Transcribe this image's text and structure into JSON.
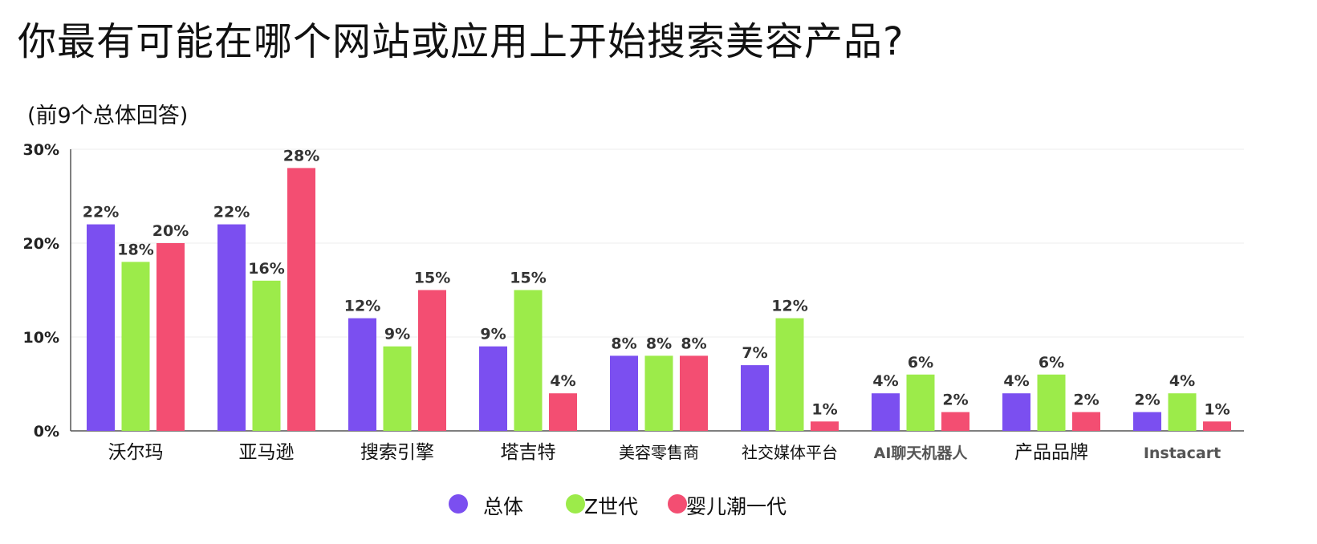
{
  "title": "你最有可能在哪个网站或应用上开始搜索美容产品?",
  "subtitle": "(前9个总体回答)",
  "chart_data": {
    "type": "bar",
    "categories": [
      "沃尔玛",
      "亚马逊",
      "搜索引擎",
      "塔吉特",
      "美容零售商",
      "社交媒体平台",
      "AI聊天机器人",
      "产品品牌",
      "Instacart"
    ],
    "series": [
      {
        "name": "总体",
        "color": "#7b4ff0",
        "values": [
          22,
          22,
          12,
          9,
          8,
          7,
          4,
          4,
          2
        ]
      },
      {
        "name": "Z世代",
        "color": "#9ceb4a",
        "values": [
          18,
          16,
          9,
          15,
          8,
          12,
          6,
          6,
          4
        ]
      },
      {
        "name": "婴儿潮一代",
        "color": "#f34e72",
        "values": [
          20,
          28,
          15,
          4,
          8,
          1,
          2,
          2,
          1
        ]
      }
    ],
    "value_suffix": "%",
    "y_ticks": [
      "0%",
      "10%",
      "20%",
      "30%"
    ],
    "ylim": [
      0,
      30
    ],
    "grid": true,
    "legend_position": "bottom-center"
  }
}
